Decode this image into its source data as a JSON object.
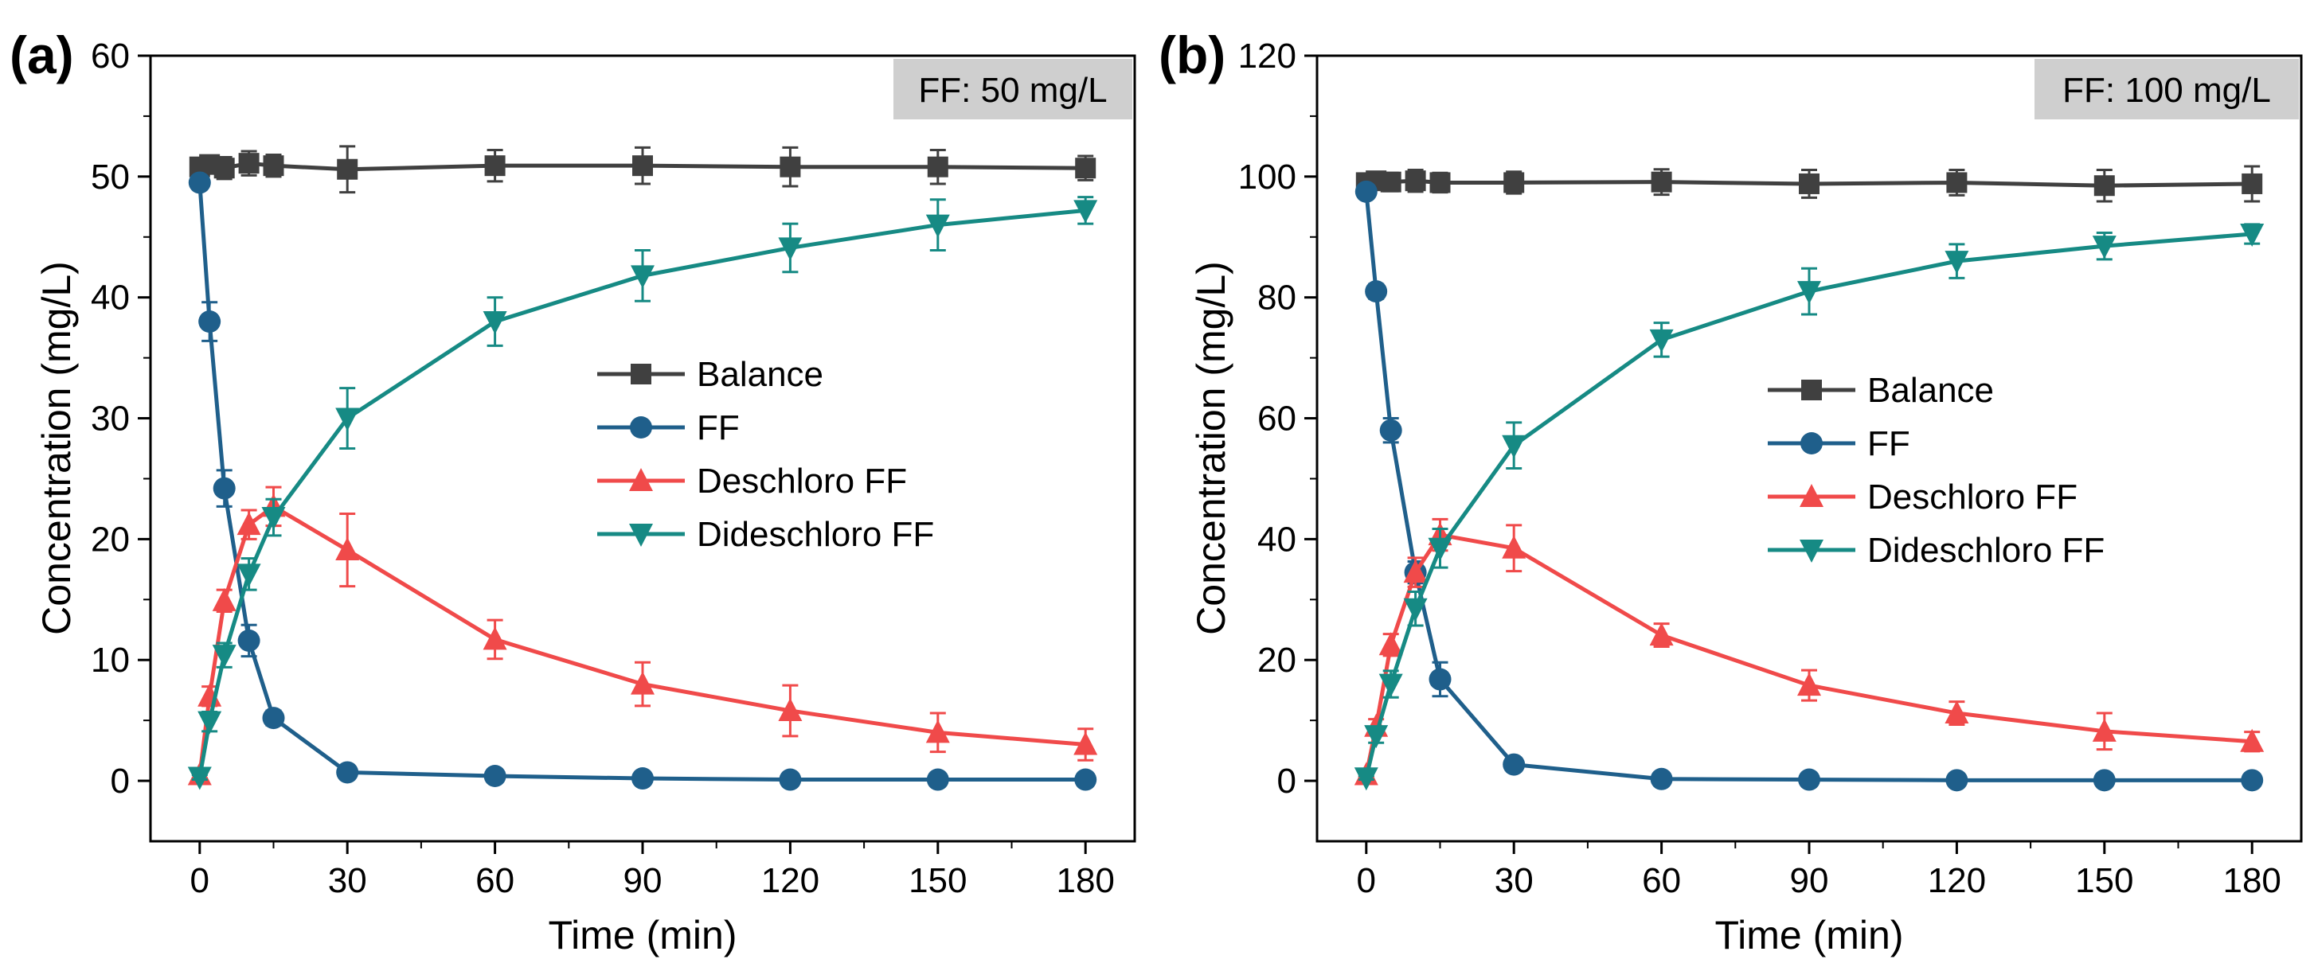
{
  "chart_data": [
    {
      "type": "line",
      "panel_label": "(a)",
      "annotation": "FF: 50 mg/L",
      "xlabel": "Time (min)",
      "ylabel": "Concentration (mg/L)",
      "xlim": [
        -10,
        190
      ],
      "ylim": [
        -5,
        60
      ],
      "xticks": [
        0,
        30,
        60,
        90,
        120,
        150,
        180
      ],
      "yticks": [
        0,
        10,
        20,
        30,
        40,
        50,
        60
      ],
      "x": [
        0,
        2,
        5,
        10,
        15,
        30,
        60,
        90,
        120,
        150,
        180
      ],
      "legend_position": "center-right",
      "series": [
        {
          "name": "Balance",
          "color": "#404040",
          "marker": "square",
          "values": [
            50.8,
            51.0,
            50.7,
            51.1,
            50.9,
            50.6,
            50.9,
            50.9,
            50.8,
            50.8,
            50.7
          ],
          "errors": [
            0.6,
            0.7,
            0.9,
            1.0,
            0.9,
            1.9,
            1.3,
            1.5,
            1.6,
            1.4,
            1.0
          ]
        },
        {
          "name": "FF",
          "color": "#1f5f8b",
          "marker": "circle",
          "values": [
            49.5,
            38.0,
            24.2,
            11.6,
            5.2,
            0.7,
            0.4,
            0.2,
            0.1,
            0.1,
            0.1
          ],
          "errors": [
            0.5,
            1.6,
            1.5,
            1.3,
            0.6,
            0.2,
            0.2,
            0.1,
            0.1,
            0.1,
            0.1
          ]
        },
        {
          "name": "Deschloro FF",
          "color": "#f04a4a",
          "marker": "triangle-up",
          "values": [
            0.5,
            7.0,
            14.9,
            21.2,
            22.7,
            19.1,
            11.7,
            8.0,
            5.8,
            4.0,
            3.0
          ],
          "errors": [
            0.3,
            0.8,
            0.9,
            1.2,
            1.6,
            3.0,
            1.6,
            1.8,
            2.1,
            1.6,
            1.3
          ]
        },
        {
          "name": "Dideschloro FF",
          "color": "#168a84",
          "marker": "triangle-down",
          "values": [
            0.3,
            4.9,
            10.4,
            17.1,
            21.8,
            30.0,
            38.0,
            41.8,
            44.1,
            46.0,
            47.2
          ],
          "errors": [
            0.2,
            0.8,
            1.0,
            1.3,
            1.5,
            2.5,
            2.0,
            2.1,
            2.0,
            2.1,
            1.1
          ]
        }
      ]
    },
    {
      "type": "line",
      "panel_label": "(b)",
      "annotation": "FF: 100 mg/L",
      "xlabel": "Time (min)",
      "ylabel": "Concentration (mg/L)",
      "xlim": [
        -10,
        190
      ],
      "ylim": [
        -10,
        120
      ],
      "xticks": [
        0,
        30,
        60,
        90,
        120,
        150,
        180
      ],
      "yticks": [
        0,
        20,
        40,
        60,
        80,
        100,
        120
      ],
      "x": [
        0,
        2,
        5,
        10,
        15,
        30,
        60,
        90,
        120,
        150,
        180
      ],
      "legend_position": "center-right",
      "series": [
        {
          "name": "Balance",
          "color": "#404040",
          "marker": "square",
          "values": [
            99.0,
            99.3,
            99.1,
            99.3,
            99.0,
            99.0,
            99.1,
            98.8,
            99.0,
            98.5,
            98.8
          ],
          "errors": [
            1.0,
            1.2,
            1.5,
            1.8,
            1.6,
            1.8,
            2.1,
            2.3,
            2.1,
            2.6,
            2.9
          ]
        },
        {
          "name": "FF",
          "color": "#1f5f8b",
          "marker": "circle",
          "values": [
            97.5,
            81.0,
            58.0,
            34.5,
            16.8,
            2.7,
            0.3,
            0.2,
            0.1,
            0.1,
            0.1
          ],
          "errors": [
            1.0,
            1.2,
            2.0,
            1.8,
            2.8,
            0.5,
            0.2,
            0.1,
            0.1,
            0.1,
            0.1
          ]
        },
        {
          "name": "Deschloro FF",
          "color": "#f04a4a",
          "marker": "triangle-up",
          "values": [
            1.0,
            9.0,
            22.5,
            34.5,
            40.7,
            38.5,
            24.1,
            15.8,
            11.2,
            8.2,
            6.5
          ],
          "errors": [
            0.4,
            1.2,
            1.8,
            2.4,
            2.6,
            3.8,
            1.9,
            2.5,
            1.9,
            3.0,
            1.6
          ]
        },
        {
          "name": "Dideschloro FF",
          "color": "#168a84",
          "marker": "triangle-down",
          "values": [
            0.5,
            7.5,
            16.0,
            28.5,
            38.5,
            55.5,
            73.0,
            81.0,
            86.0,
            88.5,
            90.5
          ],
          "errors": [
            0.3,
            1.2,
            2.2,
            2.8,
            3.2,
            3.8,
            2.8,
            3.8,
            2.8,
            2.2,
            1.6
          ]
        }
      ]
    }
  ]
}
